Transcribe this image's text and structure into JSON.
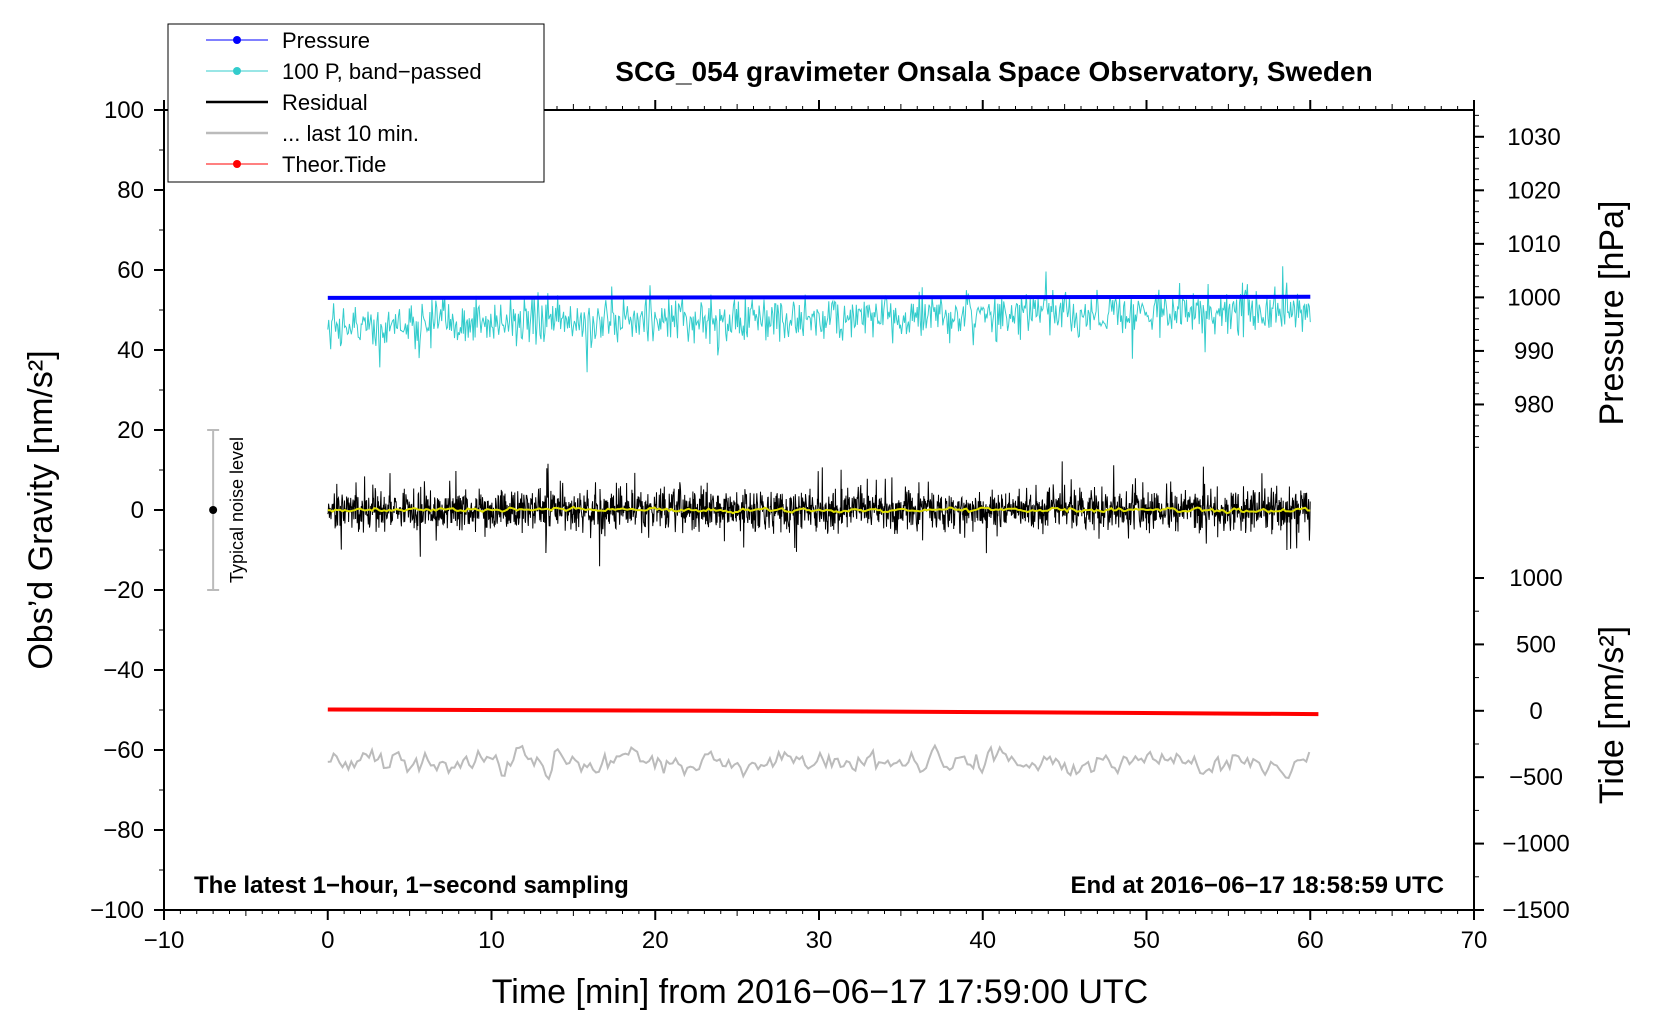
{
  "chart_data": {
    "type": "line",
    "title": "SCG_054 gravimeter Onsala Space Observatory, Sweden",
    "xlabel": "Time [min] from 2016−06−17 17:59:00 UTC",
    "ylabel_left": "Obs’d Gravity [nm/s²]",
    "ylabel_right_top": "Pressure [hPa]",
    "ylabel_right_bottom": "Tide [nm/s²]",
    "note_left": "The latest 1−hour, 1−second sampling",
    "note_right": "End at 2016−06−17 18:58:59 UTC",
    "xlim": [
      -10,
      70
    ],
    "ylim": [
      -100,
      100
    ],
    "pressure_range": [
      970,
      1035
    ],
    "tide_range": [
      -1500,
      1000
    ],
    "x_ticks": [
      {
        "value": -10,
        "label": "−10"
      },
      {
        "value": 0,
        "label": "0"
      },
      {
        "value": 10,
        "label": "10"
      },
      {
        "value": 20,
        "label": "20"
      },
      {
        "value": 30,
        "label": "30"
      },
      {
        "value": 40,
        "label": "40"
      },
      {
        "value": 50,
        "label": "50"
      },
      {
        "value": 60,
        "label": "60"
      },
      {
        "value": 70,
        "label": "70"
      }
    ],
    "y_ticks": [
      {
        "value": 100,
        "label": "100"
      },
      {
        "value": 80,
        "label": "80"
      },
      {
        "value": 60,
        "label": "60"
      },
      {
        "value": 40,
        "label": "40"
      },
      {
        "value": 20,
        "label": "20"
      },
      {
        "value": 0,
        "label": "0"
      },
      {
        "value": -20,
        "label": "−20"
      },
      {
        "value": -40,
        "label": "−40"
      },
      {
        "value": -60,
        "label": "−60"
      },
      {
        "value": -80,
        "label": "−80"
      },
      {
        "value": -100,
        "label": "−100"
      }
    ],
    "pressure_ticks": [
      {
        "value": 1030,
        "label": "1030"
      },
      {
        "value": 1020,
        "label": "1020"
      },
      {
        "value": 1010,
        "label": "1010"
      },
      {
        "value": 1000,
        "label": "1000"
      },
      {
        "value": 990,
        "label": "990"
      },
      {
        "value": 980,
        "label": "980"
      }
    ],
    "tide_ticks": [
      {
        "value": 1000,
        "label": "1000"
      },
      {
        "value": 500,
        "label": "500"
      },
      {
        "value": 0,
        "label": "0"
      },
      {
        "value": -500,
        "label": "−500"
      },
      {
        "value": -1000,
        "label": "−1000"
      },
      {
        "value": -1500,
        "label": "−1500"
      }
    ],
    "noise_bar": {
      "x": -7,
      "center": 0,
      "low": -20,
      "high": 20,
      "label": "Typical noise level"
    },
    "legend": [
      {
        "label": "Pressure",
        "color": "#0000ff",
        "marker": true
      },
      {
        "label": "100 P, band−passed",
        "color": "#33cccc",
        "marker": true
      },
      {
        "label": "Residual",
        "color": "#000000",
        "marker": false
      },
      {
        "label": "... last 10 min.",
        "color": "#bbbbbb",
        "marker": false
      },
      {
        "label": "Theor.Tide",
        "color": "#ff0000",
        "marker": true
      }
    ],
    "series": [
      {
        "name": "Pressure",
        "axis": "pressure",
        "color": "#0000ff",
        "x": [
          0,
          60
        ],
        "values": [
          999.9,
          1000.1
        ]
      },
      {
        "name": "100 P, band−passed",
        "axis": "gravity",
        "color": "#33cccc",
        "x_range": [
          0,
          60
        ],
        "center": 46,
        "center_end": 50,
        "amplitude": 4
      },
      {
        "name": "Residual",
        "axis": "gravity",
        "color": "#000000",
        "x_range": [
          0,
          60
        ],
        "center": 0,
        "amplitude": 3.5
      },
      {
        "name": "Residual (smoothed)",
        "axis": "gravity",
        "color": "#dddd00",
        "x_range": [
          0,
          60
        ],
        "center": 0,
        "amplitude": 0.8
      },
      {
        "name": "... last 10 min.",
        "axis": "gravity",
        "color": "#bbbbbb",
        "x_range": [
          0,
          60
        ],
        "center": -63,
        "amplitude": 3.5
      },
      {
        "name": "Theor.Tide",
        "axis": "tide",
        "color": "#ff0000",
        "x": [
          0,
          24,
          40,
          60.5
        ],
        "values": [
          10,
          0,
          -10,
          -25
        ]
      }
    ]
  }
}
